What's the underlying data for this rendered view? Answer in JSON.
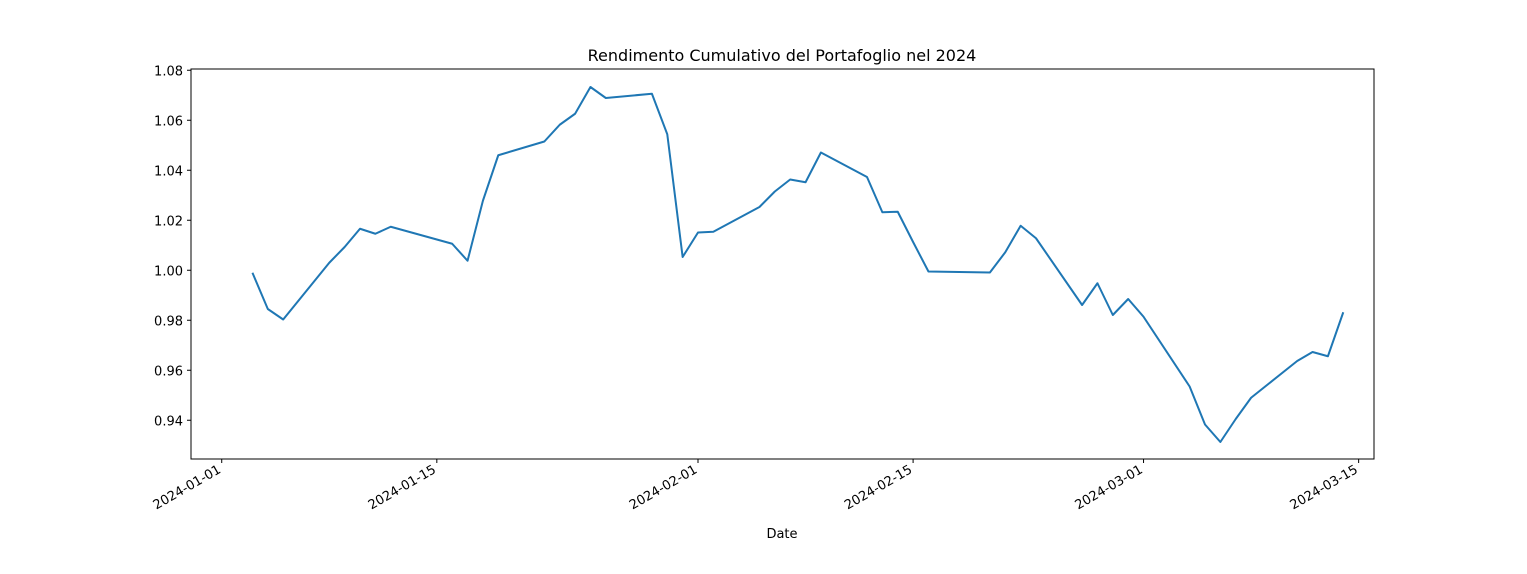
{
  "chart_data": {
    "type": "line",
    "title": "Rendimento Cumulativo del Portafoglio nel 2024",
    "xlabel": "Date",
    "ylabel": "",
    "x_tick_labels": [
      "2024-01-01",
      "2024-01-15",
      "2024-02-01",
      "2024-02-15",
      "2024-03-01",
      "2024-03-15"
    ],
    "y_tick_labels": [
      "0.94",
      "0.96",
      "0.98",
      "1.00",
      "1.02",
      "1.04",
      "1.06",
      "1.08"
    ],
    "xlim": [
      "2023-12-30",
      "2024-03-16"
    ],
    "ylim": [
      0.9245,
      1.0805
    ],
    "grid": false,
    "line_color": "#1f77b4",
    "series": [
      {
        "x": [
          "2024-01-03",
          "2024-01-04",
          "2024-01-05",
          "2024-01-08",
          "2024-01-09",
          "2024-01-10",
          "2024-01-11",
          "2024-01-12",
          "2024-01-16",
          "2024-01-17",
          "2024-01-18",
          "2024-01-19",
          "2024-01-22",
          "2024-01-23",
          "2024-01-24",
          "2024-01-25",
          "2024-01-26",
          "2024-01-29",
          "2024-01-30",
          "2024-01-31",
          "2024-02-01",
          "2024-02-02",
          "2024-02-05",
          "2024-02-06",
          "2024-02-07",
          "2024-02-08",
          "2024-02-09",
          "2024-02-12",
          "2024-02-13",
          "2024-02-14",
          "2024-02-15",
          "2024-02-16",
          "2024-02-20",
          "2024-02-21",
          "2024-02-22",
          "2024-02-23",
          "2024-02-26",
          "2024-02-27",
          "2024-02-28",
          "2024-02-29",
          "2024-03-01",
          "2024-03-04",
          "2024-03-05",
          "2024-03-06",
          "2024-03-07",
          "2024-03-08",
          "2024-03-11",
          "2024-03-12",
          "2024-03-13",
          "2024-03-14"
        ],
        "values": [
          0.999,
          0.9845,
          0.9803,
          1.003,
          1.0093,
          1.0166,
          1.0146,
          1.0174,
          1.0106,
          1.0038,
          1.0278,
          1.046,
          1.0515,
          1.0582,
          1.0626,
          1.0733,
          1.0689,
          1.0706,
          1.0544,
          1.0053,
          1.0151,
          1.0154,
          1.0253,
          1.0315,
          1.0363,
          1.0352,
          1.0471,
          1.0373,
          1.0232,
          1.0234,
          1.0113,
          0.9995,
          0.9991,
          1.0072,
          1.0178,
          1.0128,
          0.9861,
          0.9948,
          0.9821,
          0.9885,
          0.9814,
          0.9535,
          0.9383,
          0.9313,
          0.9405,
          0.949,
          0.9637,
          0.9673,
          0.9656,
          0.9832
        ]
      }
    ]
  }
}
